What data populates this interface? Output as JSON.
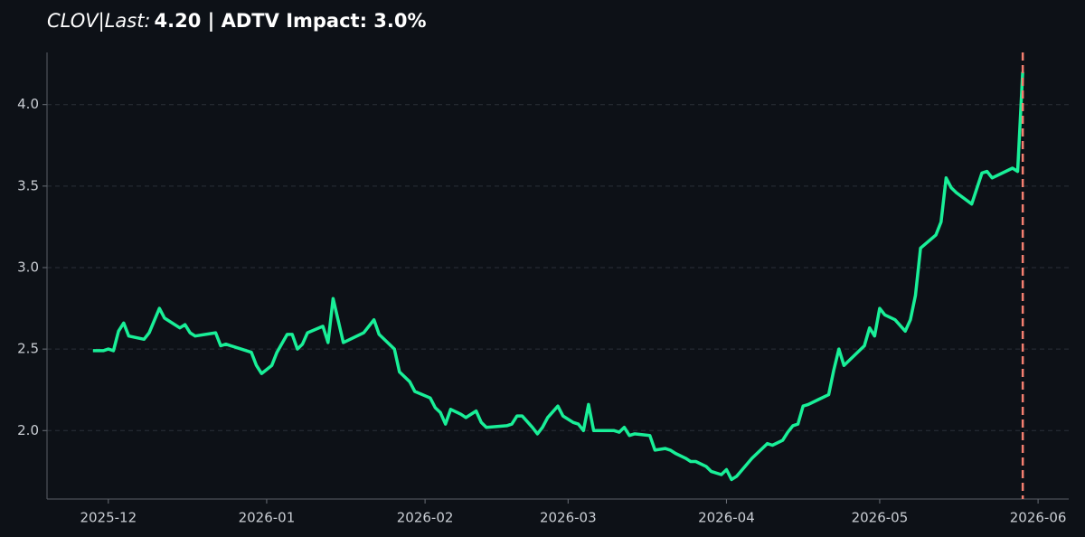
{
  "chart_data": {
    "type": "line",
    "title": [
      "CLOV|Last:",
      "4.20 | ADTV Impact: 3.0%"
    ],
    "x": [
      -3,
      -1,
      0,
      1,
      2,
      3,
      4,
      7,
      8,
      10,
      11,
      14,
      15,
      16,
      17,
      21,
      22,
      23,
      28,
      29,
      30,
      32,
      33,
      35,
      36,
      37,
      38,
      39,
      42,
      43,
      44,
      46,
      50,
      52,
      53,
      56,
      57,
      59,
      60,
      63,
      64,
      65,
      66,
      67,
      69,
      70,
      72,
      73,
      74,
      78,
      79,
      80,
      81,
      83,
      84,
      85,
      86,
      88,
      89,
      91,
      92,
      93,
      94,
      95,
      99,
      100,
      101,
      102,
      103,
      106,
      107,
      109,
      110,
      111,
      113,
      114,
      115,
      117,
      118,
      120,
      121,
      122,
      123,
      126,
      128,
      129,
      130,
      132,
      133,
      134,
      135,
      136,
      137,
      139,
      141,
      142,
      143,
      144,
      148,
      149,
      150,
      151,
      152,
      154,
      156,
      157,
      158,
      159,
      162,
      163,
      164,
      165,
      166,
      169,
      171,
      172,
      173,
      177,
      178,
      179
    ],
    "series": [
      {
        "name": "CLOV",
        "color": "#19ef98",
        "values": [
          2.49,
          2.49,
          2.5,
          2.49,
          2.61,
          2.66,
          2.58,
          2.56,
          2.6,
          2.75,
          2.69,
          2.63,
          2.65,
          2.6,
          2.58,
          2.6,
          2.52,
          2.53,
          2.48,
          2.4,
          2.35,
          2.4,
          2.48,
          2.59,
          2.59,
          2.5,
          2.53,
          2.6,
          2.64,
          2.54,
          2.81,
          2.54,
          2.6,
          2.68,
          2.59,
          2.5,
          2.36,
          2.3,
          2.24,
          2.2,
          2.14,
          2.11,
          2.04,
          2.13,
          2.1,
          2.08,
          2.12,
          2.05,
          2.02,
          2.03,
          2.04,
          2.09,
          2.09,
          2.02,
          1.98,
          2.02,
          2.08,
          2.15,
          2.09,
          2.05,
          2.04,
          2.0,
          2.16,
          2.0,
          2.0,
          1.99,
          2.02,
          1.97,
          1.98,
          1.97,
          1.88,
          1.89,
          1.88,
          1.86,
          1.83,
          1.81,
          1.81,
          1.78,
          1.75,
          1.73,
          1.76,
          1.7,
          1.72,
          1.83,
          1.89,
          1.92,
          1.91,
          1.94,
          1.99,
          2.03,
          2.04,
          2.15,
          2.16,
          2.19,
          2.22,
          2.37,
          2.5,
          2.4,
          2.52,
          2.63,
          2.58,
          2.75,
          2.71,
          2.68,
          2.61,
          2.68,
          2.83,
          3.12,
          3.2,
          3.28,
          3.55,
          3.49,
          3.46,
          3.39,
          3.58,
          3.59,
          3.55,
          3.61,
          3.59,
          4.2
        ]
      }
    ],
    "vline": {
      "x": 179,
      "color": "#f47f70"
    },
    "xlim": [
      -12,
      188
    ],
    "xticks": [
      {
        "value": 0,
        "label": "2025-12"
      },
      {
        "value": 31,
        "label": "2026-01"
      },
      {
        "value": 62,
        "label": "2026-02"
      },
      {
        "value": 90,
        "label": "2026-03"
      },
      {
        "value": 121,
        "label": "2026-04"
      },
      {
        "value": 151,
        "label": "2026-05"
      },
      {
        "value": 182,
        "label": "2026-06"
      }
    ],
    "ylim": [
      1.58,
      4.32
    ],
    "yticks": [
      {
        "value": 2,
        "label": "2.0"
      },
      {
        "value": 2.5,
        "label": "2.5"
      },
      {
        "value": 3,
        "label": "3.0"
      },
      {
        "value": 3.5,
        "label": "3.5"
      },
      {
        "value": 4,
        "label": "4.0"
      }
    ],
    "grid": true
  }
}
